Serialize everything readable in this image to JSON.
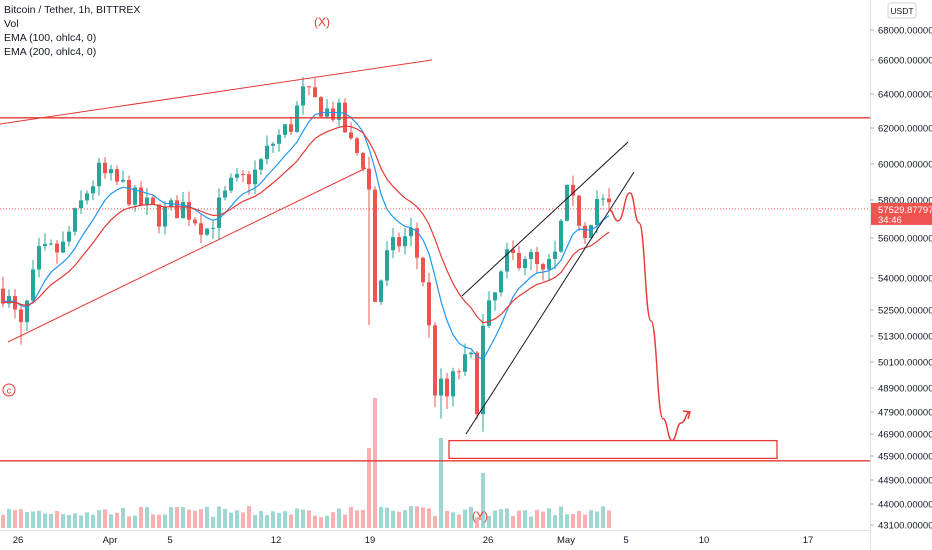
{
  "legend": {
    "symbol_line": "Bitcoin / Tether, 1h, BITTREX",
    "vol_line": "Vol",
    "ema100_line": "EMA (100, ohlc4, 0)",
    "ema200_line": "EMA (200, ohlc4, 0)"
  },
  "price_axis": {
    "currency_label": "USDT",
    "current_price": "57529.87797",
    "countdown": "34:46",
    "current_value": 57529.87797
  },
  "colors": {
    "up": "#26a69a",
    "down": "#ef5350",
    "ema100": "#2196f3",
    "ema200": "#e53935",
    "annotation": "#e53935",
    "wedge": "#131722",
    "badge": "#ef5350"
  },
  "annotations": {
    "wave_x": "(X)",
    "wave_y": "(Y)",
    "wave_c": "c"
  },
  "chart_data": {
    "type": "candlestick",
    "title": "Bitcoin / Tether, 1h, BITTREX",
    "y_ticks": [
      "68000.00000",
      "66000.00000",
      "64000.00000",
      "62000.00000",
      "60000.00000",
      "58000.00000",
      "56000.00000",
      "54000.00000",
      "52500.00000",
      "51300.00000",
      "50100.00000",
      "48900.00000",
      "47900.00000",
      "46900.00000",
      "45900.00000",
      "44900.00000",
      "44000.00000",
      "43100.00000"
    ],
    "x_ticks": [
      "26",
      "Apr",
      "5",
      "12",
      "19",
      "26",
      "May",
      "5",
      "10",
      "17"
    ],
    "ema_series": [
      "EMA (100, ohlc4, 0)",
      "EMA (200, ohlc4, 0)"
    ],
    "price_path": [
      [
        0,
        53500
      ],
      [
        3,
        51500
      ],
      [
        6,
        55000
      ],
      [
        10,
        55500
      ],
      [
        14,
        58500
      ],
      [
        16,
        59500
      ],
      [
        20,
        58700
      ],
      [
        22,
        58000
      ],
      [
        26,
        57200
      ],
      [
        30,
        57700
      ],
      [
        34,
        56500
      ],
      [
        38,
        58700
      ],
      [
        42,
        59500
      ],
      [
        45,
        61200
      ],
      [
        48,
        62200
      ],
      [
        50,
        64000
      ],
      [
        52,
        63500
      ],
      [
        54,
        63000
      ],
      [
        56,
        62800
      ],
      [
        58,
        61000
      ],
      [
        60,
        60200
      ],
      [
        61,
        58500
      ],
      [
        62,
        53000
      ],
      [
        64,
        55000
      ],
      [
        66,
        55800
      ],
      [
        68,
        56200
      ],
      [
        70,
        54000
      ],
      [
        72,
        49000
      ],
      [
        74,
        48500
      ],
      [
        76,
        49800
      ],
      [
        78,
        50000
      ],
      [
        79,
        48500
      ],
      [
        80,
        51500
      ],
      [
        84,
        54800
      ],
      [
        87,
        55300
      ],
      [
        90,
        54000
      ],
      [
        92,
        55000
      ],
      [
        94,
        58200
      ],
      [
        97,
        56500
      ],
      [
        99,
        58100
      ],
      [
        101,
        57500
      ]
    ],
    "horizontal_levels": [
      62600,
      45700
    ],
    "support_zone": [
      45800,
      46600
    ],
    "projection": [
      [
        101,
        57500
      ],
      [
        102.5,
        56900
      ],
      [
        104.5,
        58400
      ],
      [
        106,
        56800
      ],
      [
        108,
        52000
      ],
      [
        110,
        47600
      ],
      [
        111.5,
        46600
      ],
      [
        113,
        47400
      ],
      [
        114.5,
        47900
      ]
    ]
  }
}
